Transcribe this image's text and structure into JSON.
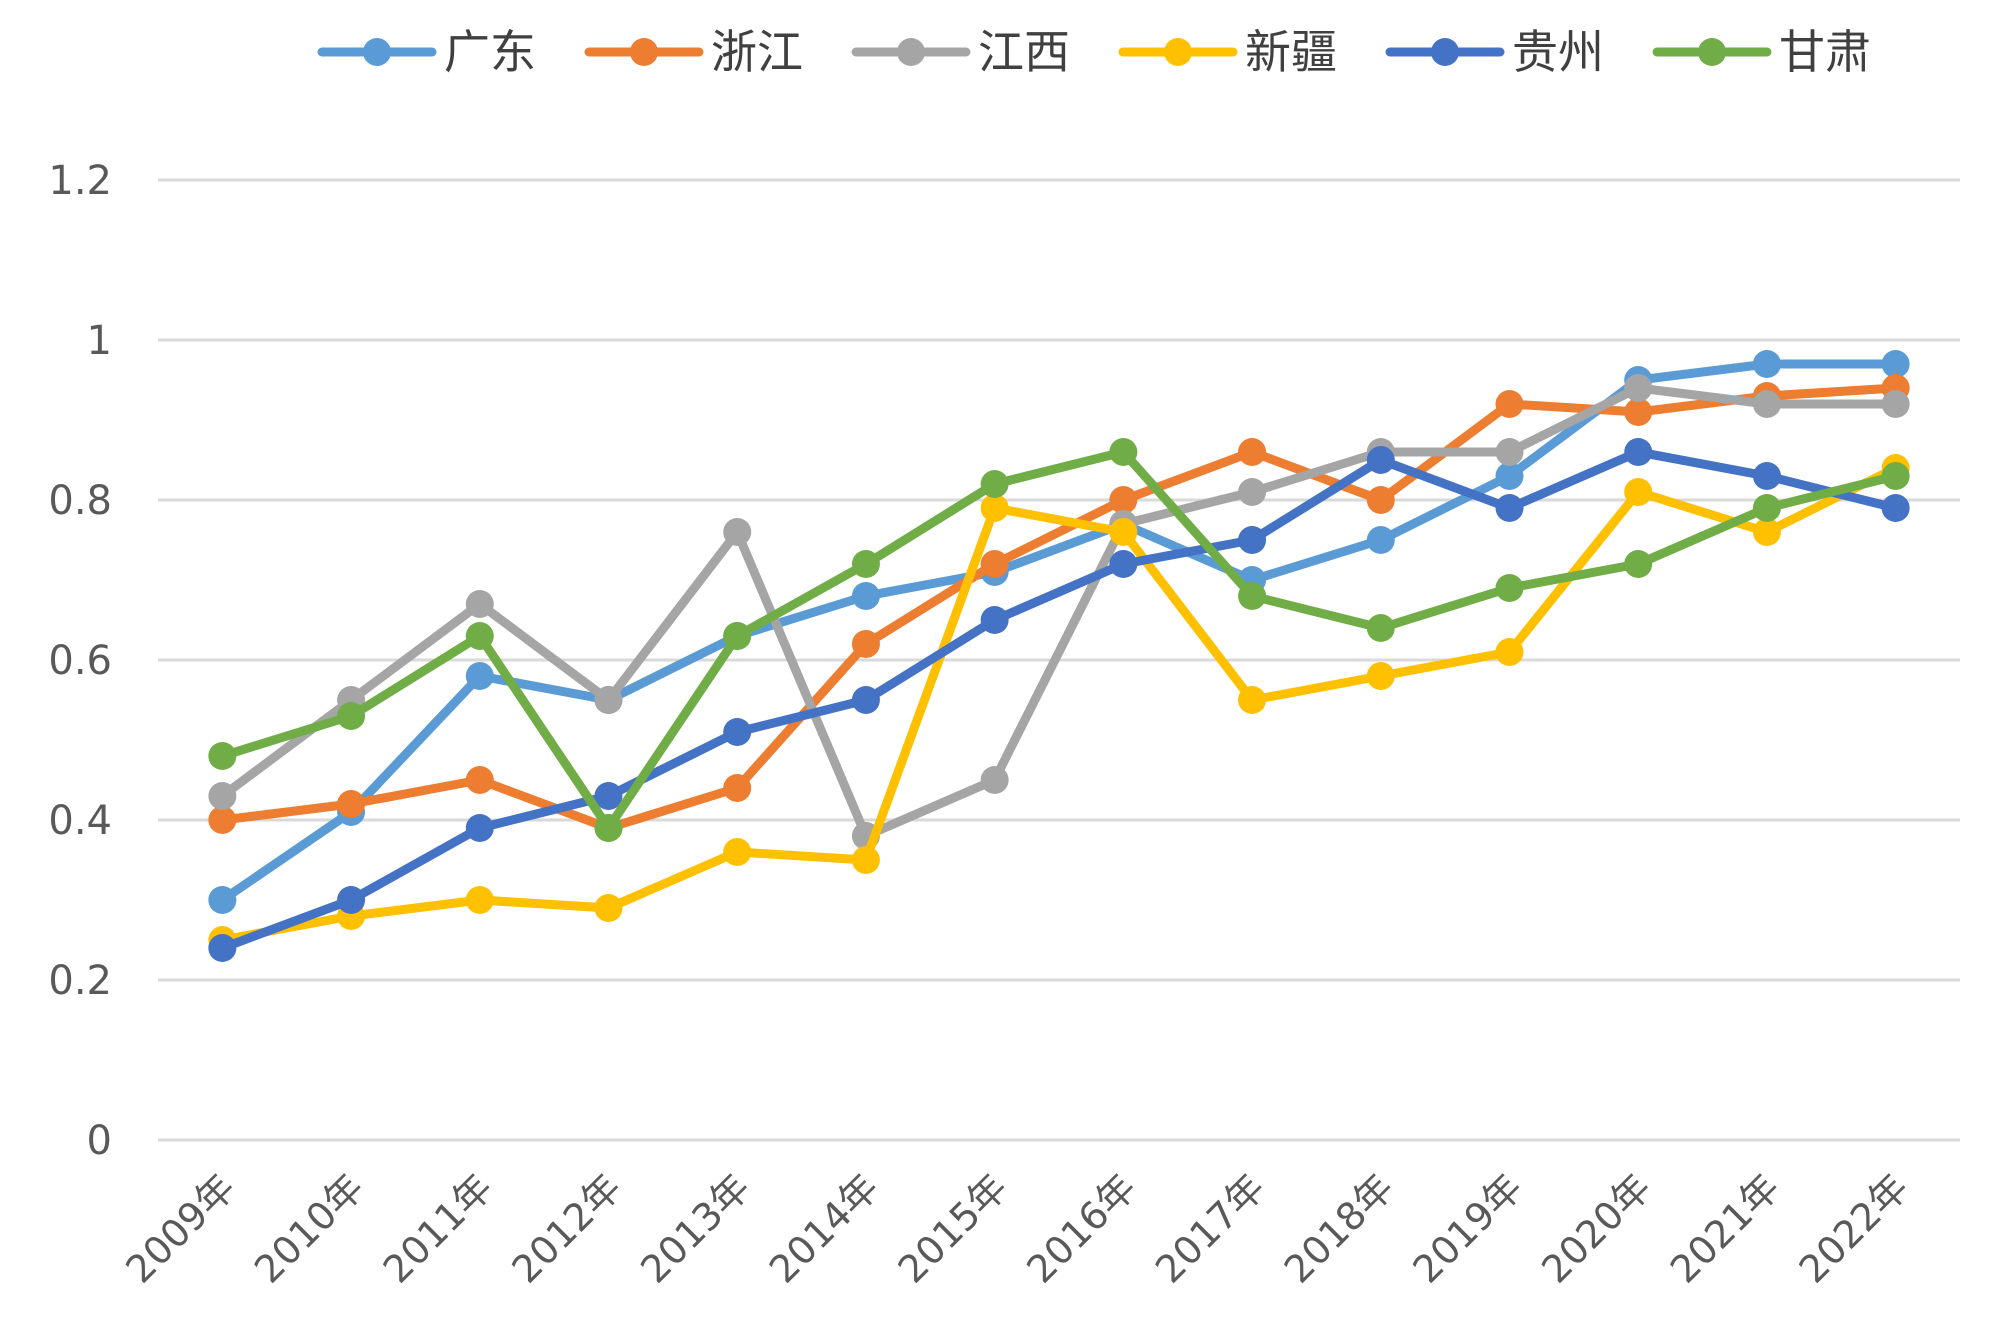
{
  "chart_data": {
    "type": "line",
    "title": "",
    "xlabel": "",
    "ylabel": "",
    "ylim": [
      0,
      1.2
    ],
    "yticks": [
      "0",
      "0.2",
      "0.4",
      "0.6",
      "0.8",
      "1",
      "1.2"
    ],
    "ytick_values": [
      0,
      0.2,
      0.4,
      0.6,
      0.8,
      1.0,
      1.2
    ],
    "grid": true,
    "legend_position": "top",
    "categories": [
      "2009年",
      "2010年",
      "2011年",
      "2012年",
      "2013年",
      "2014年",
      "2015年",
      "2016年",
      "2017年",
      "2018年",
      "2019年",
      "2020年",
      "2021年",
      "2022年"
    ],
    "series": [
      {
        "name": "广东",
        "color": "#5B9BD5",
        "values": [
          0.3,
          0.41,
          0.58,
          0.55,
          0.63,
          0.68,
          0.71,
          0.77,
          0.7,
          0.75,
          0.83,
          0.95,
          0.97,
          0.97
        ]
      },
      {
        "name": "浙江",
        "color": "#ED7D31",
        "values": [
          0.4,
          0.42,
          0.45,
          0.39,
          0.44,
          0.62,
          0.72,
          0.8,
          0.86,
          0.8,
          0.92,
          0.91,
          0.93,
          0.94
        ]
      },
      {
        "name": "江西",
        "color": "#A5A5A5",
        "values": [
          0.43,
          0.55,
          0.67,
          0.55,
          0.76,
          0.38,
          0.45,
          0.77,
          0.81,
          0.86,
          0.86,
          0.94,
          0.92,
          0.92
        ]
      },
      {
        "name": "新疆",
        "color": "#FFC000",
        "values": [
          0.25,
          0.28,
          0.3,
          0.29,
          0.36,
          0.35,
          0.79,
          0.76,
          0.55,
          0.58,
          0.61,
          0.81,
          0.76,
          0.84
        ]
      },
      {
        "name": "贵州",
        "color": "#4472C4",
        "values": [
          0.24,
          0.3,
          0.39,
          0.43,
          0.51,
          0.55,
          0.65,
          0.72,
          0.75,
          0.85,
          0.79,
          0.86,
          0.83,
          0.79
        ]
      },
      {
        "name": "甘肃",
        "color": "#70AD47",
        "values": [
          0.48,
          0.53,
          0.63,
          0.39,
          0.63,
          0.72,
          0.82,
          0.86,
          0.68,
          0.64,
          0.69,
          0.72,
          0.79,
          0.83
        ]
      }
    ]
  }
}
